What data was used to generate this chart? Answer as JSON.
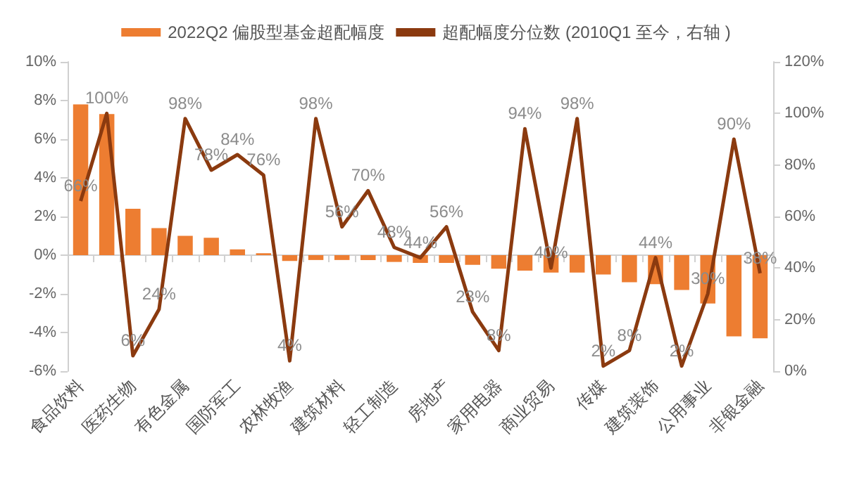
{
  "chart_data": {
    "type": "bar",
    "categories": [
      "食品饮料",
      null,
      "医药生物",
      null,
      "有色金属",
      null,
      "国防军工",
      null,
      "农林牧渔",
      null,
      "建筑材料",
      null,
      "轻工制造",
      null,
      "房地产",
      null,
      "家用电器",
      null,
      "商业贸易",
      null,
      "传媒",
      null,
      "建筑装饰",
      null,
      "公用事业",
      null,
      "非银金融"
    ],
    "series": [
      {
        "name": "2022Q2 偏股型基金超配幅度",
        "color": "#ed7d31",
        "values": [
          7.8,
          7.3,
          2.4,
          1.4,
          1.0,
          0.9,
          0.3,
          0.1,
          -0.3,
          -0.25,
          -0.25,
          -0.25,
          -0.35,
          -0.4,
          -0.4,
          -0.5,
          -0.7,
          -0.8,
          -0.9,
          -0.9,
          -1.0,
          -1.4,
          -1.5,
          -1.8,
          -2.5,
          -4.2,
          -4.3
        ]
      },
      {
        "name": "超配幅度分位数 (2010Q1 至今，右轴 )",
        "type": "line",
        "axis": "y2",
        "color": "#8b3a0f",
        "values": [
          66,
          100,
          6,
          24,
          98,
          78,
          84,
          76,
          4,
          98,
          56,
          70,
          48,
          44,
          56,
          23,
          8,
          94,
          40,
          98,
          2,
          8,
          44,
          2,
          30,
          90,
          38
        ],
        "value_labels": [
          "66%",
          "100%",
          "6%",
          "24%",
          "98%",
          "78%",
          "84%",
          "76%",
          "4%",
          "98%",
          "56%",
          "70%",
          "48%",
          "44%",
          "56%",
          "23%",
          "8%",
          "94%",
          "40%",
          "98%",
          "2%",
          "8%",
          "44%",
          "2%",
          "30%",
          "90%",
          "38%"
        ]
      }
    ],
    "ylim": [
      -6,
      10
    ],
    "yticks": [
      {
        "value": -6,
        "label": "-6%"
      },
      {
        "value": -4,
        "label": "-4%"
      },
      {
        "value": -2,
        "label": "-2%"
      },
      {
        "value": 0,
        "label": "0%"
      },
      {
        "value": 2,
        "label": "2%"
      },
      {
        "value": 4,
        "label": "4%"
      },
      {
        "value": 6,
        "label": "6%"
      },
      {
        "value": 8,
        "label": "8%"
      },
      {
        "value": 10,
        "label": "10%"
      }
    ],
    "y2lim": [
      0,
      120
    ],
    "y2ticks": [
      {
        "value": 0,
        "label": "0%"
      },
      {
        "value": 20,
        "label": "20%"
      },
      {
        "value": 40,
        "label": "40%"
      },
      {
        "value": 60,
        "label": "60%"
      },
      {
        "value": 80,
        "label": "80%"
      },
      {
        "value": 100,
        "label": "100%"
      },
      {
        "value": 120,
        "label": "120%"
      }
    ],
    "legend": "top",
    "marker": "none",
    "line_style": "solid"
  }
}
